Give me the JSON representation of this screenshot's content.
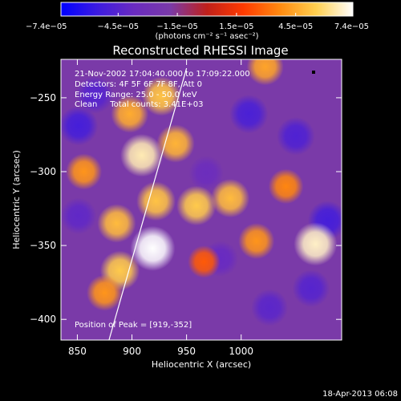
{
  "chart_data": {
    "type": "heatmap",
    "title": "Reconstructed RHESSI Image",
    "xlabel": "Heliocentric X (arcsec)",
    "ylabel": "Heliocentric Y (arcsec)",
    "xlim": [
      835,
      1092
    ],
    "ylim": [
      -414,
      -224
    ],
    "x_ticks": [
      850,
      900,
      950,
      1000
    ],
    "x_tick_labels": [
      "850",
      "900",
      "950",
      "1000"
    ],
    "y_ticks": [
      -250,
      -300,
      -350,
      -400
    ],
    "y_tick_labels": [
      "−250",
      "−300",
      "−350",
      "−400"
    ],
    "colorbar": {
      "min": -7.4e-05,
      "max": 7.4e-05,
      "tick_values": [
        -7.4e-05,
        -4.5e-05,
        -1.5e-05,
        1.5e-05,
        4.5e-05,
        7.4e-05
      ],
      "tick_labels": [
        "−7.4e−05",
        "−4.5e−05",
        "−1.5e−05",
        "1.5e−05",
        "4.5e−05",
        "7.4e−05"
      ],
      "unit_label": "(photons cm⁻² s⁻¹ asec⁻²)",
      "colormap": [
        "#0000ff",
        "#3c1be0",
        "#6a2bc0",
        "#7a3aa8",
        "#c0201a",
        "#ff3a00",
        "#ff8a10",
        "#ffd050",
        "#ffffff"
      ]
    },
    "annotations": [
      "21-Nov-2002 17:04:40.000 to 17:09:22.000",
      "Detectors: 4F 5F 6F 7F 8F, Att 0",
      "Energy Range: 25.0 - 50.0 keV",
      "Clean     Total counts: 3.41E+03"
    ],
    "peak": {
      "x": 919,
      "y": -352,
      "label": "Position of Peak = [919,-352]"
    },
    "limb_line": [
      {
        "x": 879,
        "y": -414
      },
      {
        "x": 950,
        "y": -230
      }
    ],
    "values": [
      {
        "x": 851,
        "y": -269,
        "v": -5.2e-05
      },
      {
        "x": 866,
        "y": -248,
        "v": -4.5e-05
      },
      {
        "x": 1007,
        "y": -261,
        "v": -5e-05
      },
      {
        "x": 1050,
        "y": -276,
        "v": -4.8e-05
      },
      {
        "x": 1079,
        "y": -333,
        "v": -5.2e-05
      },
      {
        "x": 1064,
        "y": -379,
        "v": -4.5e-05
      },
      {
        "x": 1026,
        "y": -392,
        "v": -4.3e-05
      },
      {
        "x": 981,
        "y": -359,
        "v": -3.8e-05
      },
      {
        "x": 851,
        "y": -330,
        "v": -4.1e-05
      },
      {
        "x": 968,
        "y": -301,
        "v": -3.5e-05
      },
      {
        "x": 898,
        "y": -261,
        "v": 4.6e-05
      },
      {
        "x": 927,
        "y": -249,
        "v": 5.2e-05
      },
      {
        "x": 909,
        "y": -289,
        "v": 6.6e-05
      },
      {
        "x": 940,
        "y": -281,
        "v": 4.8e-05
      },
      {
        "x": 922,
        "y": -320,
        "v": 5.2e-05
      },
      {
        "x": 886,
        "y": -335,
        "v": 5e-05
      },
      {
        "x": 919,
        "y": -352,
        "v": 7.4e-05
      },
      {
        "x": 889,
        "y": -367,
        "v": 5.4e-05
      },
      {
        "x": 959,
        "y": -323,
        "v": 5.4e-05
      },
      {
        "x": 990,
        "y": -318,
        "v": 5e-05
      },
      {
        "x": 1068,
        "y": -349,
        "v": 6.8e-05
      },
      {
        "x": 1041,
        "y": -310,
        "v": 3.6e-05
      },
      {
        "x": 1014,
        "y": -347,
        "v": 4e-05
      },
      {
        "x": 856,
        "y": -300,
        "v": 4e-05
      },
      {
        "x": 875,
        "y": -382,
        "v": 4e-05
      },
      {
        "x": 1022,
        "y": -229,
        "v": 4.4e-05
      },
      {
        "x": 966,
        "y": -361,
        "v": 2.6e-05
      }
    ]
  },
  "footer": {
    "timestamp": "18-Apr-2013 06:08"
  }
}
